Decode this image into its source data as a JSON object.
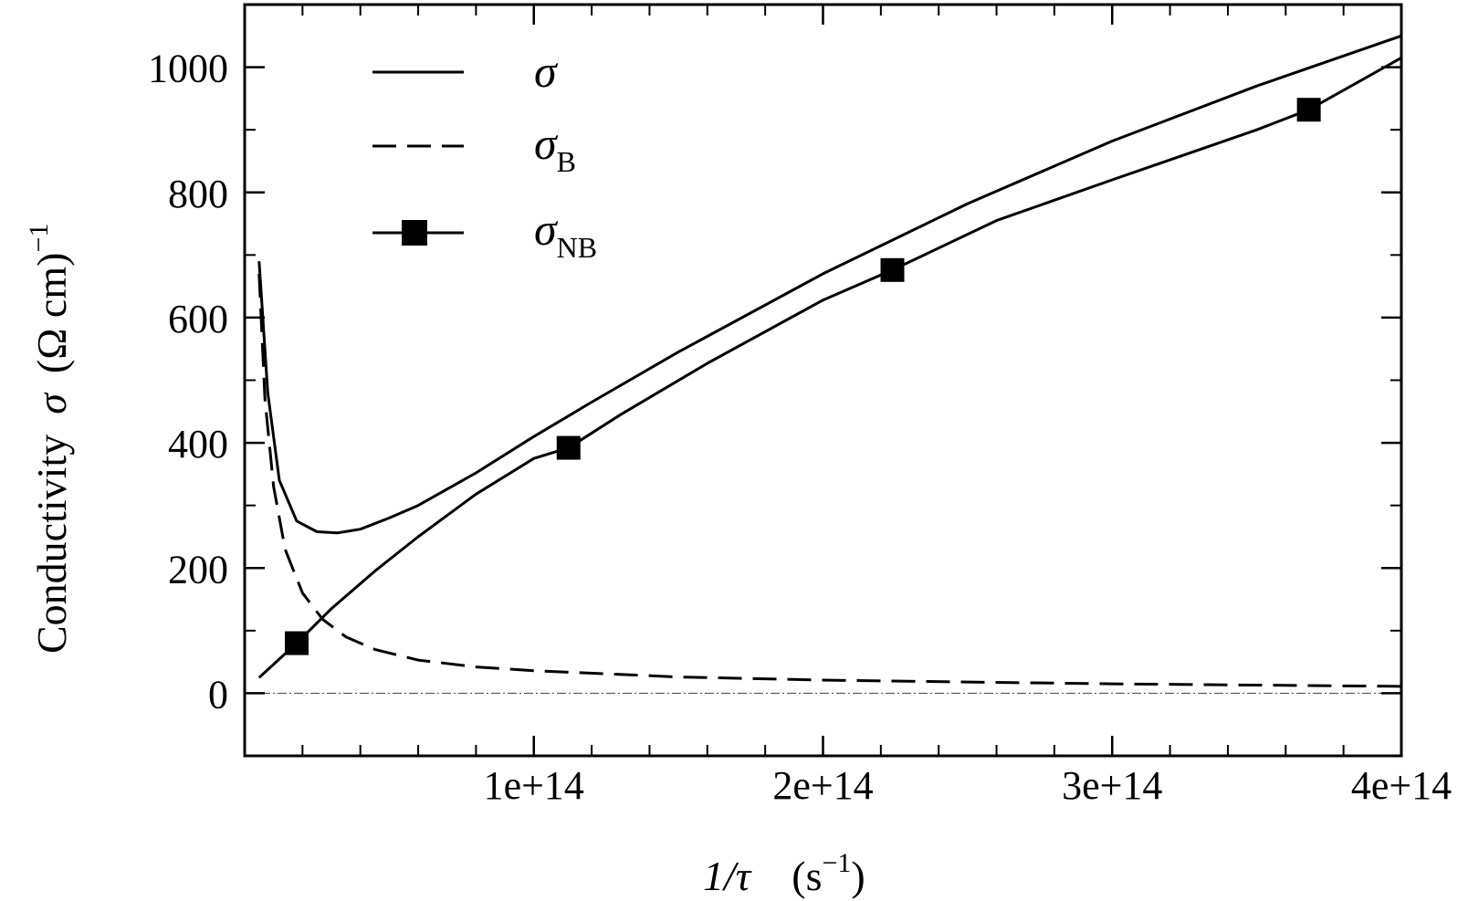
{
  "chart_data": {
    "type": "line",
    "title": "",
    "xlabel": {
      "main": "1/τ",
      "unit_open": "(s",
      "unit_exp": "−1",
      "unit_close": ")"
    },
    "ylabel": {
      "main": "Conductivity",
      "symbol": "σ",
      "unit": "(Ω cm)",
      "unit_exp": "−1"
    },
    "xlim": [
      0,
      400000000000000.0
    ],
    "ylim": [
      -100,
      1100
    ],
    "x_ticks": [
      {
        "value": 100000000000000.0,
        "label": "1e+14"
      },
      {
        "value": 200000000000000.0,
        "label": "2e+14"
      },
      {
        "value": 300000000000000.0,
        "label": "3e+14"
      },
      {
        "value": 400000000000000.0,
        "label": "4e+14"
      }
    ],
    "y_ticks": [
      {
        "value": 0,
        "label": "0"
      },
      {
        "value": 200,
        "label": "200"
      },
      {
        "value": 400,
        "label": "400"
      },
      {
        "value": 600,
        "label": "600"
      },
      {
        "value": 800,
        "label": "800"
      },
      {
        "value": 1000,
        "label": "1000"
      }
    ],
    "zero_line": true,
    "legend_position": "top-left",
    "series": [
      {
        "name": "σ",
        "sub": "",
        "style": "solid",
        "marker": "none",
        "x": [
          5000000000000.0,
          8000000000000.0,
          12000000000000.0,
          18000000000000.0,
          25000000000000.0,
          32000000000000.0,
          40000000000000.0,
          50000000000000.0,
          60000000000000.0,
          80000000000000.0,
          100000000000000.0,
          120000000000000.0,
          150000000000000.0,
          200000000000000.0,
          250000000000000.0,
          300000000000000.0,
          350000000000000.0,
          400000000000000.0
        ],
        "y": [
          690,
          480,
          340,
          275,
          258,
          256,
          262,
          280,
          300,
          352,
          410,
          465,
          545,
          670,
          782,
          882,
          970,
          1050
        ]
      },
      {
        "name": "σ",
        "sub": "B",
        "style": "dashed",
        "marker": "none",
        "x": [
          5000000000000.0,
          7000000000000.0,
          10000000000000.0,
          14000000000000.0,
          20000000000000.0,
          27000000000000.0,
          35000000000000.0,
          45000000000000.0,
          60000000000000.0,
          80000000000000.0,
          100000000000000.0,
          150000000000000.0,
          200000000000000.0,
          250000000000000.0,
          300000000000000.0,
          350000000000000.0,
          400000000000000.0
        ],
        "y": [
          670,
          470,
          330,
          230,
          160,
          118,
          90,
          70,
          53,
          42,
          36,
          26,
          21,
          18,
          15,
          13,
          11
        ]
      },
      {
        "name": "σ",
        "sub": "NB",
        "style": "solid",
        "marker": "square",
        "x": [
          5000000000000.0,
          18000000000000.0,
          30000000000000.0,
          45000000000000.0,
          60000000000000.0,
          80000000000000.0,
          100000000000000.0,
          112000000000000.0,
          130000000000000.0,
          160000000000000.0,
          200000000000000.0,
          224000000000000.0,
          260000000000000.0,
          300000000000000.0,
          350000000000000.0,
          368000000000000.0,
          400000000000000.0
        ],
        "y": [
          25,
          80,
          135,
          195,
          250,
          318,
          375,
          392,
          445,
          527,
          628,
          676,
          755,
          820,
          900,
          932,
          1015
        ],
        "marker_points": [
          {
            "x": 18000000000000.0,
            "y": 80
          },
          {
            "x": 112000000000000.0,
            "y": 392
          },
          {
            "x": 224000000000000.0,
            "y": 676
          },
          {
            "x": 368000000000000.0,
            "y": 932
          }
        ]
      }
    ]
  }
}
